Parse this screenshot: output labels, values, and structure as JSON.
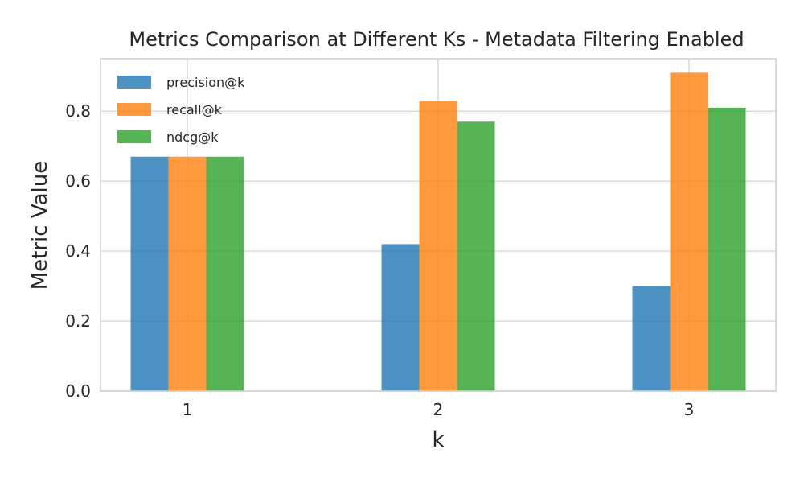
{
  "chart_data": {
    "type": "bar",
    "title": "Metrics Comparison at Different Ks - Metadata Filtering Enabled",
    "xlabel": "k",
    "ylabel": "Metric Value",
    "categories": [
      "1",
      "2",
      "3"
    ],
    "series": [
      {
        "name": "precision@k",
        "color": "#1f77b4",
        "values": [
          0.67,
          0.42,
          0.3
        ]
      },
      {
        "name": "recall@k",
        "color": "#ff7f0e",
        "values": [
          0.67,
          0.83,
          0.91
        ]
      },
      {
        "name": "ndcg@k",
        "color": "#2ca02c",
        "values": [
          0.67,
          0.77,
          0.81
        ]
      }
    ],
    "ylim": [
      0,
      0.95
    ],
    "yticks": [
      "0.0",
      "0.2",
      "0.4",
      "0.6",
      "0.8"
    ],
    "grid": true,
    "legend_position": "top-left"
  }
}
